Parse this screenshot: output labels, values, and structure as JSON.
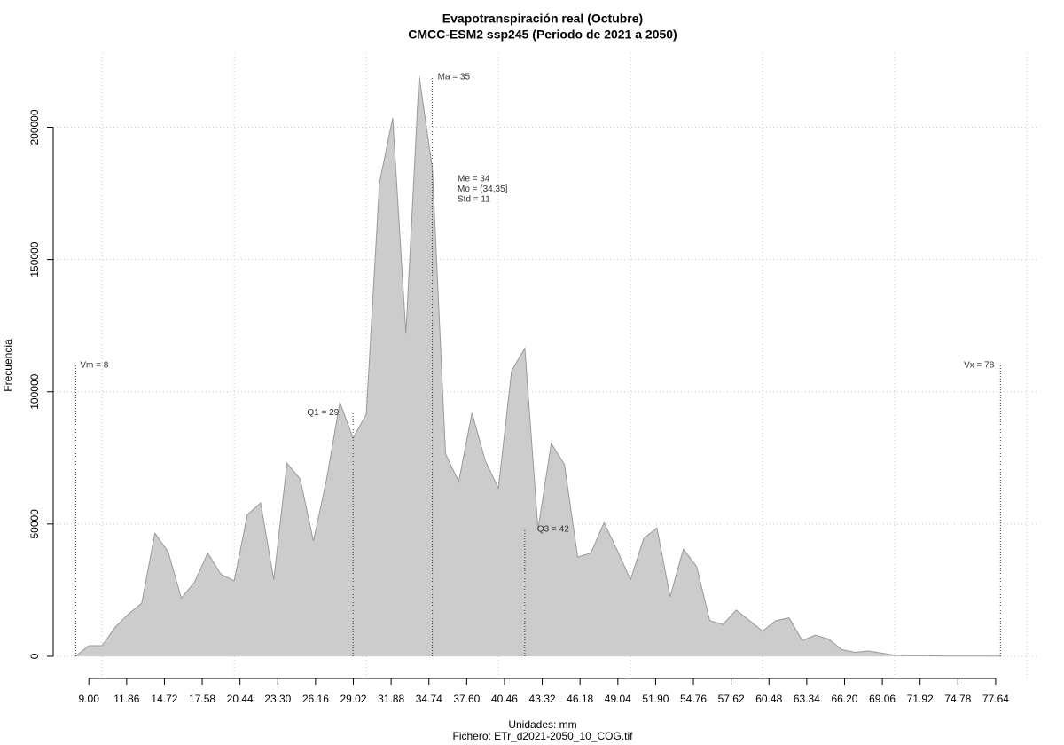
{
  "chart_data": {
    "type": "area",
    "title": "Evapotranspiración real (Octubre)",
    "subtitle": "CMCC-ESM2 ssp245 (Periodo de 2021 a 2050)",
    "x_label": "Unidades: mm",
    "file_label": "Fichero: ETr_d2021-2050_10_COG.tif",
    "y_label": "Frecuencia",
    "color": "#cccccc",
    "line_color": "#999999",
    "grid": true,
    "xlim": [
      6.3,
      80.8
    ],
    "ylim": [
      -8400,
      228000
    ],
    "yticks": [
      0,
      50000,
      100000,
      150000,
      200000
    ],
    "xgrid": [
      10,
      20,
      30,
      40,
      50,
      60,
      70,
      80
    ],
    "xticks": [
      {
        "value": 9.0,
        "label": "9.00"
      },
      {
        "value": 11.86,
        "label": "11.86"
      },
      {
        "value": 14.72,
        "label": "14.72"
      },
      {
        "value": 17.58,
        "label": "17.58"
      },
      {
        "value": 20.44,
        "label": "20.44"
      },
      {
        "value": 23.3,
        "label": "23.30"
      },
      {
        "value": 26.16,
        "label": "26.16"
      },
      {
        "value": 29.02,
        "label": "29.02"
      },
      {
        "value": 31.88,
        "label": "31.88"
      },
      {
        "value": 34.74,
        "label": "34.74"
      },
      {
        "value": 37.6,
        "label": "37.60"
      },
      {
        "value": 40.46,
        "label": "40.46"
      },
      {
        "value": 43.32,
        "label": "43.32"
      },
      {
        "value": 46.18,
        "label": "46.18"
      },
      {
        "value": 49.04,
        "label": "49.04"
      },
      {
        "value": 51.9,
        "label": "51.90"
      },
      {
        "value": 54.76,
        "label": "54.76"
      },
      {
        "value": 57.62,
        "label": "57.62"
      },
      {
        "value": 60.48,
        "label": "60.48"
      },
      {
        "value": 63.34,
        "label": "63.34"
      },
      {
        "value": 66.2,
        "label": "66.20"
      },
      {
        "value": 69.06,
        "label": "69.06"
      },
      {
        "value": 71.92,
        "label": "71.92"
      },
      {
        "value": 74.78,
        "label": "74.78"
      },
      {
        "value": 77.64,
        "label": "77.64"
      }
    ],
    "x": [
      8,
      9,
      10,
      11,
      12,
      13,
      14,
      15,
      16,
      17,
      18,
      19,
      20,
      21,
      22,
      23,
      24,
      25,
      26,
      27,
      28,
      29,
      30,
      31,
      32,
      33,
      34,
      35,
      36,
      37,
      38,
      39,
      40,
      41,
      42,
      43,
      44,
      45,
      46,
      47,
      48,
      49,
      50,
      51,
      52,
      53,
      54,
      55,
      56,
      57,
      58,
      59,
      60,
      61,
      62,
      63,
      64,
      65,
      66,
      67,
      68,
      69,
      70,
      71,
      72,
      73,
      74,
      75,
      76,
      77,
      78
    ],
    "values": [
      0,
      4000,
      4000,
      11000,
      16000,
      20000,
      46500,
      39500,
      22000,
      28000,
      39000,
      31000,
      28500,
      53500,
      58000,
      29000,
      73000,
      67000,
      43500,
      67000,
      96000,
      82500,
      91500,
      179000,
      203500,
      122000,
      219500,
      184500,
      76500,
      66000,
      92000,
      74000,
      63500,
      108000,
      116500,
      48000,
      80500,
      72500,
      37500,
      39000,
      50500,
      40000,
      29000,
      44500,
      48500,
      22500,
      40500,
      34000,
      13500,
      12000,
      17500,
      13500,
      9500,
      13500,
      14500,
      6000,
      8000,
      6500,
      2500,
      1500,
      2000,
      1200,
      400,
      300,
      300,
      150,
      100,
      80,
      60,
      40,
      20
    ],
    "annotations": [
      {
        "text": "Vm = 8",
        "x": 8,
        "y": 110000
      },
      {
        "text": "Q1 = 29",
        "x": 29,
        "y": 92000
      },
      {
        "text": "Ma = 35",
        "x": 35,
        "y": 219000
      },
      {
        "text": "Q3 = 42",
        "x": 42,
        "y": 48000
      },
      {
        "text": "Vx = 78",
        "x": 78,
        "y": 110000
      }
    ],
    "stats": [
      "Me = 34",
      "Mo = (34,35]",
      "Std = 11"
    ]
  }
}
